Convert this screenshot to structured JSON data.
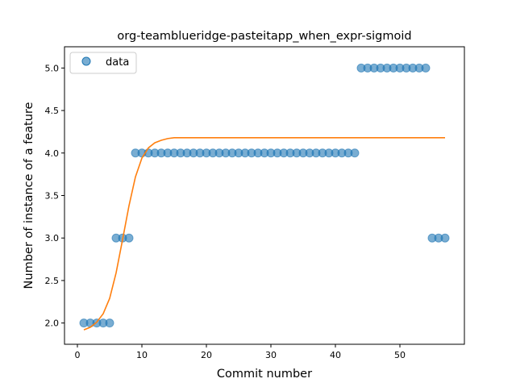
{
  "chart_data": {
    "type": "scatter",
    "title": "org-teamblueridge-pasteitapp_when_expr-sigmoid",
    "xlabel": "Commit number",
    "ylabel": "Number of instance of a feature",
    "xlim": [
      -2,
      60
    ],
    "ylim": [
      1.75,
      5.25
    ],
    "x_ticks": [
      0,
      10,
      20,
      30,
      40,
      50
    ],
    "y_ticks": [
      2.0,
      2.5,
      3.0,
      3.5,
      4.0,
      4.5,
      5.0
    ],
    "grid": false,
    "legend_position": "top-left",
    "legend": [
      {
        "label": "data",
        "marker": "circle",
        "color": "#1f77b4"
      }
    ],
    "series": [
      {
        "name": "data",
        "kind": "points",
        "color": "#1f77b4",
        "x": [
          1,
          2,
          3,
          4,
          5,
          6,
          7,
          8,
          9,
          10,
          11,
          12,
          13,
          14,
          15,
          16,
          17,
          18,
          19,
          20,
          21,
          22,
          23,
          24,
          25,
          26,
          27,
          28,
          29,
          30,
          31,
          32,
          33,
          34,
          35,
          36,
          37,
          38,
          39,
          40,
          41,
          42,
          43,
          44,
          45,
          46,
          47,
          48,
          49,
          50,
          51,
          52,
          53,
          54,
          55,
          56,
          57
        ],
        "y": [
          2,
          2,
          2,
          2,
          2,
          3,
          3,
          3,
          4,
          4,
          4,
          4,
          4,
          4,
          4,
          4,
          4,
          4,
          4,
          4,
          4,
          4,
          4,
          4,
          4,
          4,
          4,
          4,
          4,
          4,
          4,
          4,
          4,
          4,
          4,
          4,
          4,
          4,
          4,
          4,
          4,
          4,
          4,
          5,
          5,
          5,
          5,
          5,
          5,
          5,
          5,
          5,
          5,
          5,
          3,
          3,
          3
        ]
      },
      {
        "kind": "line",
        "color": "#ff7f0e",
        "x": [
          1,
          2,
          3,
          4,
          5,
          6,
          7,
          8,
          9,
          10,
          11,
          12,
          13,
          14,
          15,
          16,
          17,
          18,
          19,
          20,
          21,
          22,
          23,
          24,
          25,
          26,
          27,
          28,
          29,
          30,
          31,
          32,
          33,
          34,
          35,
          36,
          37,
          38,
          39,
          40,
          41,
          42,
          43,
          44,
          45,
          46,
          47,
          48,
          49,
          50,
          51,
          52,
          53,
          54,
          55,
          56,
          57
        ],
        "y": [
          1.92,
          1.95,
          2.01,
          2.11,
          2.29,
          2.59,
          2.98,
          3.38,
          3.72,
          3.94,
          4.06,
          4.12,
          4.15,
          4.17,
          4.18,
          4.18,
          4.18,
          4.18,
          4.18,
          4.18,
          4.18,
          4.18,
          4.18,
          4.18,
          4.18,
          4.18,
          4.18,
          4.18,
          4.18,
          4.18,
          4.18,
          4.18,
          4.18,
          4.18,
          4.18,
          4.18,
          4.18,
          4.18,
          4.18,
          4.18,
          4.18,
          4.18,
          4.18,
          4.18,
          4.18,
          4.18,
          4.18,
          4.18,
          4.18,
          4.18,
          4.18,
          4.18,
          4.18,
          4.18,
          4.18,
          4.18,
          4.18
        ]
      }
    ]
  }
}
